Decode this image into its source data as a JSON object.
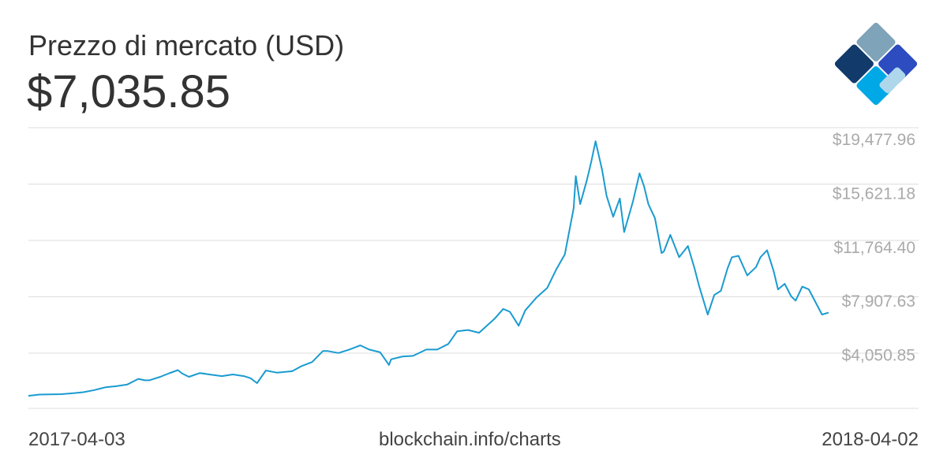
{
  "header": {
    "title": "Prezzo di mercato (USD)",
    "current_price": "$7,035.85"
  },
  "logo": {
    "icon": "blockchain-logo-icon",
    "colors": [
      "#7fa3b8",
      "#123b6b",
      "#2c4cc0",
      "#00a8e6",
      "#aed7ec"
    ]
  },
  "footer": {
    "start_date": "2017-04-03",
    "source": "blockchain.info/charts",
    "end_date": "2018-04-02"
  },
  "chart_data": {
    "type": "line",
    "title": "Prezzo di mercato (USD)",
    "xlabel": "",
    "ylabel": "",
    "x_range": [
      "2017-04-03",
      "2018-04-02"
    ],
    "ylim": [
      193.3,
      20264
    ],
    "y_ticks": [
      4050.85,
      7907.63,
      11764.4,
      15621.18,
      19477.96
    ],
    "y_tick_labels": [
      "$4,050.85",
      "$7,907.63",
      "$11,764.40",
      "$15,621.18",
      "$19,477.96"
    ],
    "grid": true,
    "line_color": "#1a9bd0",
    "series": [
      {
        "x": [
          "2017-04-03",
          "2017-04-08",
          "2017-04-13",
          "2017-04-18",
          "2017-04-23",
          "2017-04-28",
          "2017-05-03",
          "2017-05-08",
          "2017-05-13",
          "2017-05-18",
          "2017-05-23",
          "2017-05-26",
          "2017-05-28",
          "2017-06-02",
          "2017-06-06",
          "2017-06-10",
          "2017-06-12",
          "2017-06-15",
          "2017-06-20",
          "2017-06-25",
          "2017-06-30",
          "2017-07-05",
          "2017-07-10",
          "2017-07-13",
          "2017-07-16",
          "2017-07-20",
          "2017-07-25",
          "2017-08-01",
          "2017-08-05",
          "2017-08-10",
          "2017-08-15",
          "2017-08-17",
          "2017-08-22",
          "2017-08-27",
          "2017-09-01",
          "2017-09-05",
          "2017-09-10",
          "2017-09-14",
          "2017-09-15",
          "2017-09-20",
          "2017-09-25",
          "2017-10-01",
          "2017-10-06",
          "2017-10-11",
          "2017-10-15",
          "2017-10-20",
          "2017-10-25",
          "2017-11-01",
          "2017-11-05",
          "2017-11-08",
          "2017-11-12",
          "2017-11-15",
          "2017-11-20",
          "2017-11-25",
          "2017-11-29",
          "2017-12-03",
          "2017-12-07",
          "2017-12-08",
          "2017-12-10",
          "2017-12-13",
          "2017-12-15",
          "2017-12-17",
          "2017-12-20",
          "2017-12-22",
          "2017-12-25",
          "2017-12-28",
          "2017-12-30",
          "2018-01-03",
          "2018-01-06",
          "2018-01-08",
          "2018-01-10",
          "2018-01-13",
          "2018-01-16",
          "2018-01-17",
          "2018-01-20",
          "2018-01-24",
          "2018-01-28",
          "2018-01-31",
          "2018-02-02",
          "2018-02-06",
          "2018-02-09",
          "2018-02-12",
          "2018-02-15",
          "2018-02-17",
          "2018-02-20",
          "2018-02-24",
          "2018-02-28",
          "2018-03-02",
          "2018-03-05",
          "2018-03-08",
          "2018-03-10",
          "2018-03-13",
          "2018-03-16",
          "2018-03-18",
          "2018-03-21",
          "2018-03-24",
          "2018-03-27",
          "2018-03-30",
          "2018-04-02"
        ],
        "y": [
          1090,
          1180,
          1190,
          1210,
          1270,
          1350,
          1500,
          1700,
          1780,
          1900,
          2300,
          2200,
          2200,
          2450,
          2700,
          2930,
          2680,
          2450,
          2720,
          2600,
          2500,
          2620,
          2500,
          2350,
          2000,
          2900,
          2750,
          2850,
          3200,
          3500,
          4300,
          4300,
          4150,
          4400,
          4700,
          4400,
          4200,
          3300,
          3700,
          3900,
          3950,
          4400,
          4400,
          4800,
          5700,
          5800,
          5600,
          6600,
          7300,
          7100,
          6100,
          7200,
          8100,
          8800,
          10100,
          11200,
          14500,
          16800,
          14800,
          16500,
          17800,
          19300,
          17200,
          15400,
          13900,
          15200,
          12800,
          15000,
          17000,
          16100,
          14800,
          13800,
          11300,
          11400,
          12600,
          11000,
          11800,
          10200,
          9000,
          6900,
          8300,
          8600,
          10200,
          11000,
          11100,
          9700,
          10300,
          11000,
          11500,
          10000,
          8700,
          9100,
          8200,
          7900,
          8900,
          8700,
          7800,
          6900,
          7036
        ]
      }
    ]
  }
}
